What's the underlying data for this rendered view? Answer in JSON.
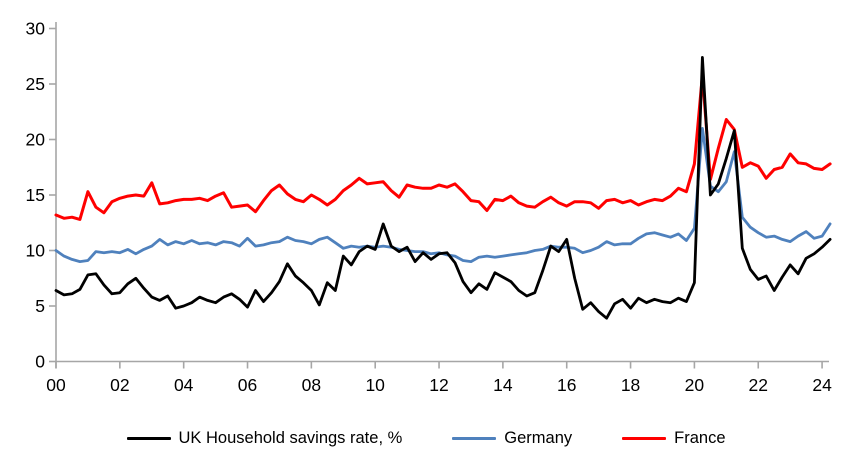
{
  "chart_data": {
    "type": "line",
    "title": "",
    "xlabel": "",
    "ylabel": "",
    "grid": false,
    "legend_position": "bottom",
    "axis_color": "#A6A6A6",
    "text_color": "#000000",
    "ylim": [
      0,
      30
    ],
    "y_ticks": [
      0,
      5,
      10,
      15,
      20,
      25,
      30
    ],
    "x_start": 2000.0,
    "x_step": 0.25,
    "xlim": [
      2000,
      2024.25
    ],
    "x_tick_years": [
      2000,
      2002,
      2004,
      2006,
      2008,
      2010,
      2012,
      2014,
      2016,
      2018,
      2020,
      2022,
      2024
    ],
    "x_tick_labels": [
      "00",
      "02",
      "04",
      "06",
      "08",
      "10",
      "12",
      "14",
      "16",
      "18",
      "20",
      "22",
      "24"
    ],
    "series": [
      {
        "name": "UK Household savings rate, %",
        "color": "#000000",
        "stroke_width": 2.8,
        "values": [
          6.4,
          6.0,
          6.1,
          6.5,
          7.8,
          7.9,
          6.9,
          6.1,
          6.2,
          7.0,
          7.5,
          6.6,
          5.8,
          5.5,
          5.9,
          4.8,
          5.0,
          5.3,
          5.8,
          5.5,
          5.3,
          5.8,
          6.1,
          5.6,
          4.9,
          6.4,
          5.4,
          6.2,
          7.2,
          8.8,
          7.7,
          7.1,
          6.4,
          5.1,
          7.1,
          6.4,
          9.5,
          8.7,
          9.9,
          10.4,
          10.1,
          12.4,
          10.4,
          9.9,
          10.3,
          9.0,
          9.8,
          9.2,
          9.7,
          9.8,
          8.9,
          7.2,
          6.2,
          7.0,
          6.5,
          8.0,
          7.6,
          7.2,
          6.4,
          5.9,
          6.2,
          8.2,
          10.4,
          9.9,
          11.0,
          7.5,
          4.7,
          5.3,
          4.5,
          3.9,
          5.2,
          5.6,
          4.8,
          5.7,
          5.3,
          5.6,
          5.4,
          5.3,
          5.7,
          5.4,
          7.1,
          27.4,
          15.0,
          16.0,
          18.3,
          20.8,
          10.2,
          8.3,
          7.4,
          7.7,
          6.4,
          7.6,
          8.7,
          7.9,
          9.3,
          9.7,
          10.3,
          11.0
        ]
      },
      {
        "name": "Germany",
        "color": "#4F81BD",
        "stroke_width": 2.8,
        "values": [
          10.0,
          9.5,
          9.2,
          9.0,
          9.1,
          9.9,
          9.8,
          9.9,
          9.8,
          10.1,
          9.7,
          10.1,
          10.4,
          11.0,
          10.5,
          10.8,
          10.6,
          10.9,
          10.6,
          10.7,
          10.5,
          10.8,
          10.7,
          10.4,
          11.1,
          10.4,
          10.5,
          10.7,
          10.8,
          11.2,
          10.9,
          10.8,
          10.6,
          11.0,
          11.2,
          10.7,
          10.2,
          10.4,
          10.3,
          10.4,
          10.3,
          10.4,
          10.3,
          10.1,
          10.0,
          9.9,
          9.9,
          9.7,
          9.8,
          9.6,
          9.5,
          9.1,
          9.0,
          9.4,
          9.5,
          9.4,
          9.5,
          9.6,
          9.7,
          9.8,
          10.0,
          10.1,
          10.4,
          10.3,
          10.3,
          10.2,
          9.8,
          10.0,
          10.3,
          10.8,
          10.5,
          10.6,
          10.6,
          11.1,
          11.5,
          11.6,
          11.4,
          11.2,
          11.5,
          10.9,
          12.0,
          21.0,
          15.8,
          15.3,
          16.2,
          18.9,
          13.0,
          12.1,
          11.6,
          11.2,
          11.3,
          11.0,
          10.8,
          11.3,
          11.7,
          11.1,
          11.3,
          12.4
        ]
      },
      {
        "name": "France",
        "color": "#FF0000",
        "stroke_width": 3.0,
        "values": [
          13.2,
          12.9,
          13.0,
          12.8,
          15.3,
          13.9,
          13.4,
          14.4,
          14.7,
          14.9,
          15.0,
          14.9,
          16.1,
          14.2,
          14.3,
          14.5,
          14.6,
          14.6,
          14.7,
          14.5,
          14.9,
          15.2,
          13.9,
          14.0,
          14.1,
          13.5,
          14.5,
          15.4,
          15.9,
          15.1,
          14.6,
          14.4,
          15.0,
          14.6,
          14.1,
          14.6,
          15.4,
          15.9,
          16.5,
          16.0,
          16.1,
          16.2,
          15.4,
          14.8,
          15.9,
          15.7,
          15.6,
          15.6,
          15.9,
          15.7,
          16.0,
          15.3,
          14.5,
          14.4,
          13.6,
          14.6,
          14.5,
          14.9,
          14.3,
          14.0,
          13.9,
          14.4,
          14.8,
          14.3,
          14.0,
          14.4,
          14.4,
          14.3,
          13.8,
          14.5,
          14.6,
          14.3,
          14.5,
          14.1,
          14.4,
          14.6,
          14.5,
          14.9,
          15.6,
          15.3,
          17.8,
          25.8,
          16.4,
          19.2,
          21.8,
          20.9,
          17.5,
          17.9,
          17.6,
          16.5,
          17.3,
          17.5,
          18.7,
          17.9,
          17.8,
          17.4,
          17.3,
          17.8
        ]
      }
    ]
  },
  "legend": {
    "uk_label": "UK Household savings rate, %",
    "germany_label": "Germany",
    "france_label": "France"
  }
}
